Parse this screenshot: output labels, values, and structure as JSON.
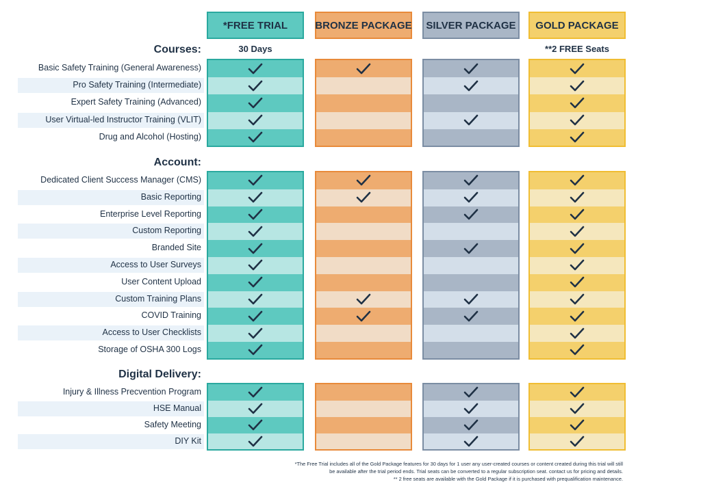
{
  "packages": [
    {
      "name": "*FREE TRIAL",
      "subtitle": "30 Days",
      "header_bg": "#5ec9c0",
      "header_border": "#2aa99f",
      "dark": "#5ec9c0",
      "light": "#b7e6e3",
      "border": "#2aa99f"
    },
    {
      "name": "BRONZE PACKAGE",
      "subtitle": "",
      "header_bg": "#eeac70",
      "header_border": "#e88a3a",
      "dark": "#eeac70",
      "light": "#f1dcc6",
      "border": "#e88a3a"
    },
    {
      "name": "SILVER PACKAGE",
      "subtitle": "",
      "header_bg": "#a9b6c6",
      "header_border": "#7b8da3",
      "dark": "#a9b6c6",
      "light": "#d3dee9",
      "border": "#7b8da3"
    },
    {
      "name": "GOLD PACKAGE",
      "subtitle": "**2 FREE Seats",
      "header_bg": "#f4d06c",
      "header_border": "#f0bd32",
      "dark": "#f4d06c",
      "light": "#f5e7bd",
      "border": "#f0bd32"
    }
  ],
  "sections": [
    {
      "title": "Courses:",
      "features": [
        {
          "label": "Basic Safety Training (General Awareness)",
          "checks": [
            true,
            true,
            true,
            true
          ]
        },
        {
          "label": "Pro Safety Training (Intermediate)",
          "checks": [
            true,
            false,
            true,
            true
          ]
        },
        {
          "label": "Expert Safety Training (Advanced)",
          "checks": [
            true,
            false,
            false,
            true
          ]
        },
        {
          "label": "User Virtual-led Instructor Training (VLIT)",
          "checks": [
            true,
            false,
            true,
            true
          ]
        },
        {
          "label": "Drug and Alcohol (Hosting)",
          "checks": [
            true,
            false,
            false,
            true
          ]
        }
      ]
    },
    {
      "title": "Account:",
      "features": [
        {
          "label": "Dedicated Client Success Manager (CMS)",
          "checks": [
            true,
            true,
            true,
            true
          ]
        },
        {
          "label": "Basic Reporting",
          "checks": [
            true,
            true,
            true,
            true
          ]
        },
        {
          "label": "Enterprise Level Reporting",
          "checks": [
            true,
            false,
            true,
            true
          ]
        },
        {
          "label": "Custom Reporting",
          "checks": [
            true,
            false,
            false,
            true
          ]
        },
        {
          "label": "Branded Site",
          "checks": [
            true,
            false,
            true,
            true
          ]
        },
        {
          "label": "Access to User Surveys",
          "checks": [
            true,
            false,
            false,
            true
          ]
        },
        {
          "label": "User Content Upload",
          "checks": [
            true,
            false,
            false,
            true
          ]
        },
        {
          "label": "Custom Training Plans",
          "checks": [
            true,
            true,
            true,
            true
          ]
        },
        {
          "label": "COVID Training",
          "checks": [
            true,
            true,
            true,
            true
          ]
        },
        {
          "label": "Access to User Checklists",
          "checks": [
            true,
            false,
            false,
            true
          ]
        },
        {
          "label": "Storage of OSHA 300 Logs",
          "checks": [
            true,
            false,
            false,
            true
          ]
        }
      ]
    },
    {
      "title": "Digital Delivery:",
      "features": [
        {
          "label": "Injury & Illness Precvention Program",
          "checks": [
            true,
            false,
            true,
            true
          ]
        },
        {
          "label": "HSE Manual",
          "checks": [
            true,
            false,
            true,
            true
          ]
        },
        {
          "label": "Safety Meeting",
          "checks": [
            true,
            false,
            true,
            true
          ]
        },
        {
          "label": "DIY Kit",
          "checks": [
            true,
            false,
            true,
            true
          ]
        }
      ]
    }
  ],
  "check_icon": "check-icon",
  "check_color": "#1f3145",
  "footnotes": [
    "*The Free Trial includes all of the Gold Package features for 30 days for 1 user any user-created courses or content created during this trial will still",
    "be available after the trial period ends. Trial seats can be converted to a regular subscription seat. contact us for pricing and details.",
    "** 2 free seats are available with the Gold Package if it is purchased with prequalification maintenance."
  ]
}
